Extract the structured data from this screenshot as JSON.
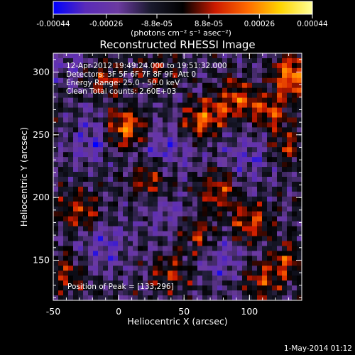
{
  "chart_data": {
    "type": "heatmap",
    "title": "Reconstructed RHESSI Image",
    "xlabel": "Heliocentric X (arcsec)",
    "ylabel": "Heliocentric Y (arcsec)",
    "xlim": [
      -50,
      140
    ],
    "ylim": [
      118,
      315
    ],
    "x_ticks": [
      -50,
      0,
      50,
      100
    ],
    "y_ticks": [
      150,
      200,
      250,
      300
    ],
    "colorbar": {
      "label": "(photons cm⁻² s⁻¹ asec⁻²)",
      "range": [
        -0.00044,
        0.00044
      ],
      "ticks": [
        "-0.00044",
        "-0.00026",
        "-8.8e-05",
        "8.8e-05",
        "0.00026",
        "0.00044"
      ],
      "colormap": [
        "#0000ff",
        "#5a2bb8",
        "#6b3aa0",
        "#1a1a2e",
        "#000000",
        "#cc1a00",
        "#ff6a00",
        "#ffd400",
        "#ffff99"
      ]
    },
    "annotations": [
      "12-Apr-2012 19:49:24.000 to 19:51:32.000",
      "Detectors: 3F 5F 6F 7F 8F 9F, Att 0",
      "Energy Range: 25.0 - 50.0 keV",
      "Clean    Total counts: 2.60E+03"
    ],
    "peak_label": "Position of Peak = [133,296]",
    "peak": [
      133,
      296
    ],
    "footer": "1-May-2014 01:12",
    "sources": [
      {
        "x": 5,
        "y": 255,
        "amp": 1.0
      },
      {
        "x": 133,
        "y": 296,
        "amp": 1.0
      },
      {
        "x": 65,
        "y": 262,
        "amp": 0.85
      },
      {
        "x": 90,
        "y": 278,
        "amp": 0.75
      },
      {
        "x": 115,
        "y": 268,
        "amp": 0.7
      },
      {
        "x": 25,
        "y": 215,
        "amp": 0.7
      },
      {
        "x": 75,
        "y": 205,
        "amp": 0.7
      },
      {
        "x": 100,
        "y": 180,
        "amp": 0.75
      },
      {
        "x": -30,
        "y": 190,
        "amp": 0.65
      },
      {
        "x": -10,
        "y": 295,
        "amp": 0.5
      },
      {
        "x": 130,
        "y": 240,
        "amp": 0.55
      },
      {
        "x": 60,
        "y": 170,
        "amp": 0.6
      },
      {
        "x": 110,
        "y": 135,
        "amp": 0.6
      },
      {
        "x": -40,
        "y": 140,
        "amp": 0.55
      },
      {
        "x": 40,
        "y": 140,
        "amp": 0.5
      },
      {
        "x": 130,
        "y": 150,
        "amp": 0.55
      },
      {
        "x": -35,
        "y": 255,
        "amp": 0.35
      },
      {
        "x": 30,
        "y": 300,
        "amp": 0.35
      }
    ],
    "negative_regions": [
      {
        "x": -25,
        "y": 250,
        "amp": 1.0
      },
      {
        "x": 35,
        "y": 235,
        "amp": 0.8
      },
      {
        "x": 100,
        "y": 235,
        "amp": 0.7
      },
      {
        "x": 40,
        "y": 185,
        "amp": 0.6
      },
      {
        "x": -10,
        "y": 160,
        "amp": 0.7
      },
      {
        "x": 80,
        "y": 150,
        "amp": 0.6
      },
      {
        "x": -40,
        "y": 310,
        "amp": 0.5
      }
    ]
  }
}
